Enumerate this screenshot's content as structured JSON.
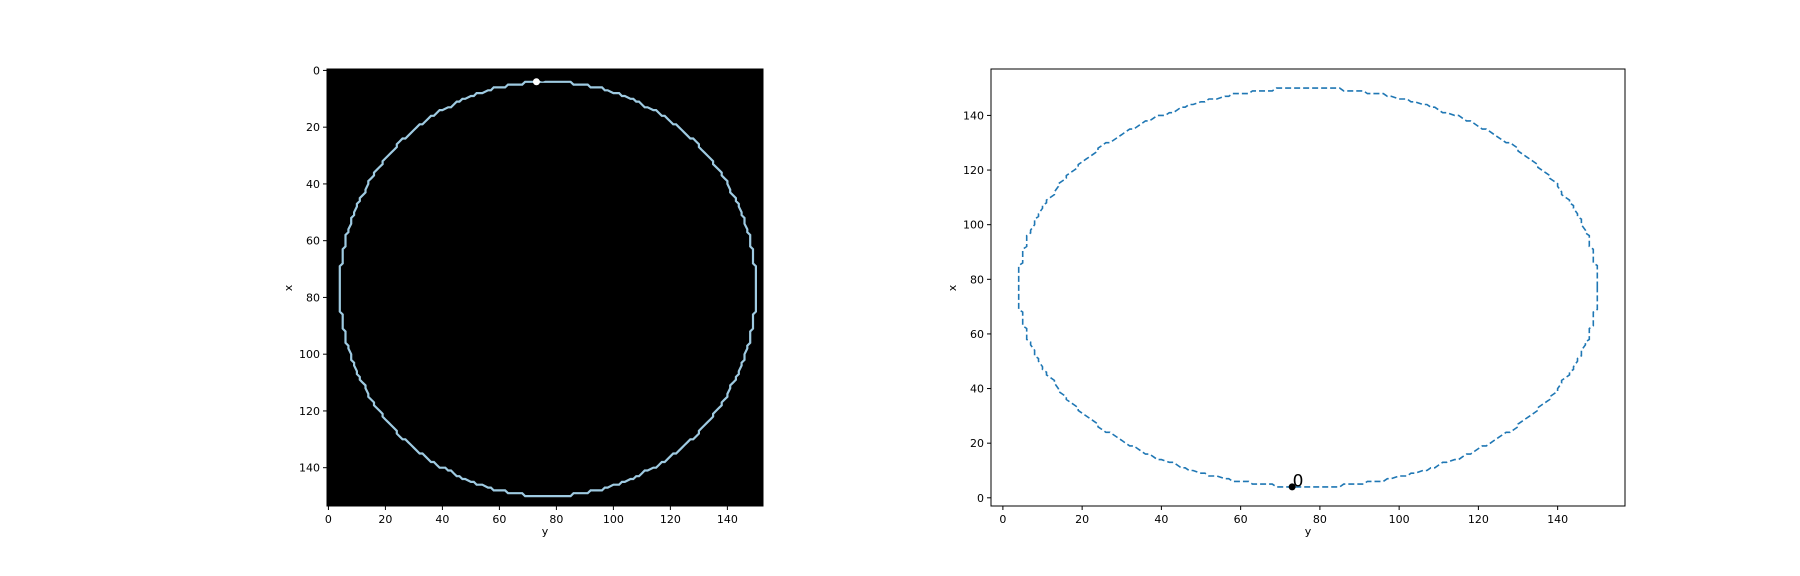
{
  "colors": {
    "contour_line": "#1f77b4",
    "image_background": "#000000",
    "image_contour": "#9ecae1",
    "start_marker_left": "#ffffff",
    "start_marker_right": "#000000",
    "start_label": "#ff0000"
  },
  "chart_data": [
    {
      "type": "heatmap",
      "description_of_data": "binary image of a closed circular contour (start point marked '0')",
      "xlabel": "y",
      "ylabel": "x",
      "xlim": [
        -0.5,
        152.5
      ],
      "ylim": [
        153.5,
        -0.5
      ],
      "xticks": [
        0,
        20,
        40,
        60,
        80,
        100,
        120,
        140
      ],
      "yticks": [
        0,
        20,
        40,
        60,
        80,
        100,
        120,
        140
      ],
      "xtick_labels": [
        "0",
        "20",
        "40",
        "60",
        "80",
        "100",
        "120",
        "140"
      ],
      "ytick_labels": [
        "0",
        "20",
        "40",
        "60",
        "80",
        "100",
        "120",
        "140"
      ],
      "contour_center": {
        "col": 77,
        "row": 77
      },
      "contour_radius": 73,
      "start_point": {
        "y": 73,
        "x": 4,
        "label": "0"
      },
      "grid": false,
      "legend": "none"
    },
    {
      "type": "line",
      "style": "dashed",
      "xlabel": "y",
      "ylabel": "x",
      "xlim": [
        -3,
        157
      ],
      "ylim": [
        -3,
        157
      ],
      "xticks": [
        0,
        20,
        40,
        60,
        80,
        100,
        120,
        140
      ],
      "yticks": [
        0,
        20,
        40,
        60,
        80,
        100,
        120,
        140
      ],
      "xtick_labels": [
        "0",
        "20",
        "40",
        "60",
        "80",
        "100",
        "120",
        "140"
      ],
      "ytick_labels": [
        "0",
        "20",
        "40",
        "60",
        "80",
        "100",
        "120",
        "140"
      ],
      "contour_center": {
        "y": 77,
        "x": 77
      },
      "contour_radius": 73,
      "start_point": {
        "y": 73,
        "x": 4,
        "label": "0"
      },
      "grid": false,
      "legend": "none"
    }
  ]
}
